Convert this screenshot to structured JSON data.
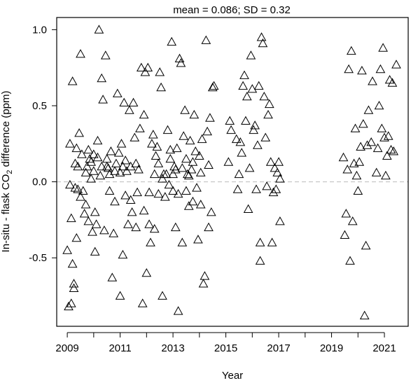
{
  "chart_data": {
    "type": "scatter",
    "title": "mean = 0.086; SD = 0.32",
    "xlabel": "Year",
    "ylabel_parts": [
      "In-situ - flask CO",
      "2",
      " difference (ppm)"
    ],
    "x_ticks": [
      "2009",
      "2011",
      "2013",
      "2015",
      "2017",
      "2019",
      "2021"
    ],
    "x_tick_values": [
      2009,
      2010,
      2011,
      2012,
      2013,
      2014,
      2015,
      2016,
      2017,
      2018,
      2019,
      2020,
      2021
    ],
    "y_ticks": [
      "1.0",
      "0.5",
      "0.0",
      "-0.5"
    ],
    "y_tick_values": [
      1.0,
      0.5,
      0.0,
      -0.5
    ],
    "xlim": [
      2008.6,
      2021.9
    ],
    "ylim": [
      -0.95,
      1.08
    ],
    "reference_line": {
      "y": 0.0,
      "style": "dashed",
      "color": "#c8c8c8"
    },
    "marker": "open-triangle",
    "marker_color": "#000000",
    "points": [
      [
        2009.0,
        -0.45
      ],
      [
        2009.05,
        -0.82
      ],
      [
        2009.1,
        -0.02
      ],
      [
        2009.1,
        0.25
      ],
      [
        2009.15,
        -0.8
      ],
      [
        2009.15,
        -0.24
      ],
      [
        2009.2,
        -0.54
      ],
      [
        2009.2,
        0.66
      ],
      [
        2009.25,
        -0.67
      ],
      [
        2009.25,
        -0.7
      ],
      [
        2009.3,
        -0.04
      ],
      [
        2009.3,
        0.12
      ],
      [
        2009.35,
        -0.37
      ],
      [
        2009.35,
        0.22
      ],
      [
        2009.4,
        -0.05
      ],
      [
        2009.45,
        0.32
      ],
      [
        2009.5,
        0.84
      ],
      [
        2009.55,
        0.18
      ],
      [
        2009.6,
        -0.06
      ],
      [
        2009.65,
        -0.21
      ],
      [
        2009.7,
        0.06
      ],
      [
        2009.75,
        0.1
      ],
      [
        2009.8,
        0.21
      ],
      [
        2009.85,
        0.15
      ],
      [
        2009.9,
        0.02
      ],
      [
        2009.95,
        -0.33
      ],
      [
        2010.0,
        0.07
      ],
      [
        2010.05,
        -0.46
      ],
      [
        2010.1,
        -0.28
      ],
      [
        2010.15,
        0.16
      ],
      [
        2010.2,
        1.0
      ],
      [
        2010.25,
        0.04
      ],
      [
        2010.3,
        0.68
      ],
      [
        2010.35,
        0.54
      ],
      [
        2010.4,
        -0.32
      ],
      [
        2010.45,
        0.83
      ],
      [
        2010.5,
        0.1
      ],
      [
        2010.55,
        0.09
      ],
      [
        2010.6,
        -0.06
      ],
      [
        2010.65,
        0.2
      ],
      [
        2010.7,
        -0.63
      ],
      [
        2010.75,
        -0.34
      ],
      [
        2010.8,
        0.07
      ],
      [
        2010.85,
        0.12
      ],
      [
        2010.9,
        0.58
      ],
      [
        2010.95,
        0.19
      ],
      [
        2011.0,
        -0.75
      ],
      [
        2011.05,
        0.25
      ],
      [
        2011.1,
        -0.48
      ],
      [
        2011.1,
        0.1
      ],
      [
        2011.15,
        0.52
      ],
      [
        2011.2,
        -0.09
      ],
      [
        2011.25,
        0.07
      ],
      [
        2011.3,
        -0.28
      ],
      [
        2011.35,
        0.47
      ],
      [
        2011.4,
        0.1
      ],
      [
        2011.45,
        -0.2
      ],
      [
        2011.5,
        0.52
      ],
      [
        2011.55,
        0.29
      ],
      [
        2011.6,
        -0.3
      ],
      [
        2011.65,
        -0.07
      ],
      [
        2011.7,
        0.08
      ],
      [
        2011.75,
        0.35
      ],
      [
        2011.8,
        0.75
      ],
      [
        2011.85,
        -0.8
      ],
      [
        2011.9,
        0.44
      ],
      [
        2011.95,
        0.72
      ],
      [
        2012.0,
        -0.6
      ],
      [
        2012.05,
        0.75
      ],
      [
        2012.1,
        -0.07
      ],
      [
        2012.15,
        -0.4
      ],
      [
        2012.2,
        0.25
      ],
      [
        2012.25,
        0.31
      ],
      [
        2012.3,
        -0.31
      ],
      [
        2012.35,
        0.17
      ],
      [
        2012.4,
        0.23
      ],
      [
        2012.45,
        0.12
      ],
      [
        2012.5,
        0.72
      ],
      [
        2012.55,
        0.62
      ],
      [
        2012.6,
        -0.75
      ],
      [
        2012.65,
        0.05
      ],
      [
        2012.7,
        -0.1
      ],
      [
        2012.75,
        0.05
      ],
      [
        2012.8,
        0.34
      ],
      [
        2012.85,
        -0.02
      ],
      [
        2012.9,
        0.21
      ],
      [
        2012.95,
        0.92
      ],
      [
        2013.0,
        -0.06
      ],
      [
        2013.05,
        0.1
      ],
      [
        2013.1,
        -0.3
      ],
      [
        2013.15,
        0.22
      ],
      [
        2013.2,
        -0.85
      ],
      [
        2013.25,
        0.81
      ],
      [
        2013.3,
        0.78
      ],
      [
        2013.35,
        -0.4
      ],
      [
        2013.4,
        0.3
      ],
      [
        2013.45,
        0.47
      ],
      [
        2013.5,
        0.15
      ],
      [
        2013.55,
        0.05
      ],
      [
        2013.6,
        -0.16
      ],
      [
        2013.65,
        0.27
      ],
      [
        2013.7,
        0.08
      ],
      [
        2013.75,
        -0.13
      ],
      [
        2013.8,
        0.44
      ],
      [
        2013.85,
        0.2
      ],
      [
        2013.9,
        -0.04
      ],
      [
        2013.95,
        -0.38
      ],
      [
        2014.0,
        0.17
      ],
      [
        2014.05,
        0.06
      ],
      [
        2014.1,
        0.28
      ],
      [
        2014.15,
        -0.67
      ],
      [
        2014.2,
        -0.62
      ],
      [
        2014.25,
        0.93
      ],
      [
        2014.3,
        0.33
      ],
      [
        2014.35,
        0.11
      ],
      [
        2014.4,
        0.42
      ],
      [
        2014.45,
        -0.2
      ],
      [
        2014.5,
        0.62
      ],
      [
        2014.55,
        0.63
      ],
      [
        2015.1,
        0.13
      ],
      [
        2015.15,
        0.4
      ],
      [
        2015.2,
        0.34
      ],
      [
        2015.4,
        0.28
      ],
      [
        2015.45,
        -0.05
      ],
      [
        2015.5,
        0.05
      ],
      [
        2015.55,
        0.26
      ],
      [
        2015.6,
        0.19
      ],
      [
        2015.65,
        0.63
      ],
      [
        2015.7,
        0.7
      ],
      [
        2015.75,
        0.4
      ],
      [
        2015.8,
        0.56
      ],
      [
        2015.85,
        -0.18
      ],
      [
        2015.9,
        0.09
      ],
      [
        2015.95,
        0.83
      ],
      [
        2016.0,
        0.61
      ],
      [
        2016.05,
        0.34
      ],
      [
        2016.1,
        0.37
      ],
      [
        2016.15,
        -0.05
      ],
      [
        2016.2,
        0.24
      ],
      [
        2016.25,
        0.63
      ],
      [
        2016.3,
        -0.4
      ],
      [
        2016.3,
        -0.52
      ],
      [
        2016.35,
        0.95
      ],
      [
        2016.4,
        0.91
      ],
      [
        2016.45,
        0.56
      ],
      [
        2016.5,
        0.29
      ],
      [
        2016.55,
        -0.03
      ],
      [
        2016.6,
        0.44
      ],
      [
        2016.65,
        0.51
      ],
      [
        2016.7,
        0.13
      ],
      [
        2016.75,
        -0.4
      ],
      [
        2016.8,
        -0.07
      ],
      [
        2016.85,
        0.09
      ],
      [
        2016.9,
        -0.05
      ],
      [
        2016.95,
        0.06
      ],
      [
        2017.0,
        0.13
      ],
      [
        2017.05,
        -0.26
      ],
      [
        2017.05,
        0.02
      ],
      [
        2019.45,
        0.16
      ],
      [
        2019.5,
        -0.35
      ],
      [
        2019.55,
        -0.21
      ],
      [
        2019.6,
        0.08
      ],
      [
        2019.65,
        0.74
      ],
      [
        2019.7,
        -0.52
      ],
      [
        2019.75,
        0.86
      ],
      [
        2019.8,
        -0.26
      ],
      [
        2019.85,
        0.12
      ],
      [
        2019.9,
        0.35
      ],
      [
        2019.95,
        0.04
      ],
      [
        2020.0,
        -0.06
      ],
      [
        2020.05,
        0.13
      ],
      [
        2020.1,
        0.23
      ],
      [
        2020.15,
        0.73
      ],
      [
        2020.2,
        0.38
      ],
      [
        2020.25,
        -0.88
      ],
      [
        2020.3,
        -0.42
      ],
      [
        2020.35,
        0.24
      ],
      [
        2020.4,
        0.47
      ],
      [
        2020.5,
        0.26
      ],
      [
        2020.55,
        0.66
      ],
      [
        2020.7,
        0.06
      ],
      [
        2020.75,
        0.22
      ],
      [
        2020.8,
        0.5
      ],
      [
        2020.85,
        0.74
      ],
      [
        2020.9,
        0.35
      ],
      [
        2020.95,
        0.88
      ],
      [
        2021.0,
        0.29
      ],
      [
        2021.05,
        0.04
      ],
      [
        2021.1,
        0.17
      ],
      [
        2021.15,
        0.3
      ],
      [
        2021.2,
        0.67
      ],
      [
        2021.25,
        0.21
      ],
      [
        2021.3,
        0.65
      ],
      [
        2021.35,
        0.2
      ],
      [
        2021.45,
        0.77
      ],
      [
        2009.4,
        0.1
      ],
      [
        2009.5,
        -0.1
      ],
      [
        2009.7,
        -0.15
      ],
      [
        2009.8,
        -0.26
      ],
      [
        2009.9,
        0.13
      ],
      [
        2010.0,
        0.18
      ],
      [
        2010.05,
        -0.2
      ],
      [
        2010.15,
        0.27
      ],
      [
        2010.3,
        0.1
      ],
      [
        2010.5,
        0.15
      ],
      [
        2010.6,
        0.05
      ],
      [
        2010.8,
        -0.13
      ],
      [
        2011.0,
        0.06
      ],
      [
        2011.2,
        0.14
      ],
      [
        2011.4,
        -0.12
      ],
      [
        2011.6,
        0.12
      ],
      [
        2011.9,
        -0.19
      ],
      [
        2012.1,
        -0.28
      ],
      [
        2012.3,
        0.05
      ],
      [
        2012.45,
        -0.08
      ],
      [
        2012.6,
        0.02
      ],
      [
        2012.9,
        0.15
      ],
      [
        2013.0,
        0.05
      ],
      [
        2013.1,
        0.08
      ],
      [
        2013.2,
        -0.08
      ],
      [
        2013.35,
        0.09
      ],
      [
        2013.5,
        -0.06
      ],
      [
        2013.6,
        0.04
      ],
      [
        2013.75,
        0.13
      ],
      [
        2014.05,
        -0.15
      ],
      [
        2014.35,
        -0.3
      ]
    ]
  }
}
